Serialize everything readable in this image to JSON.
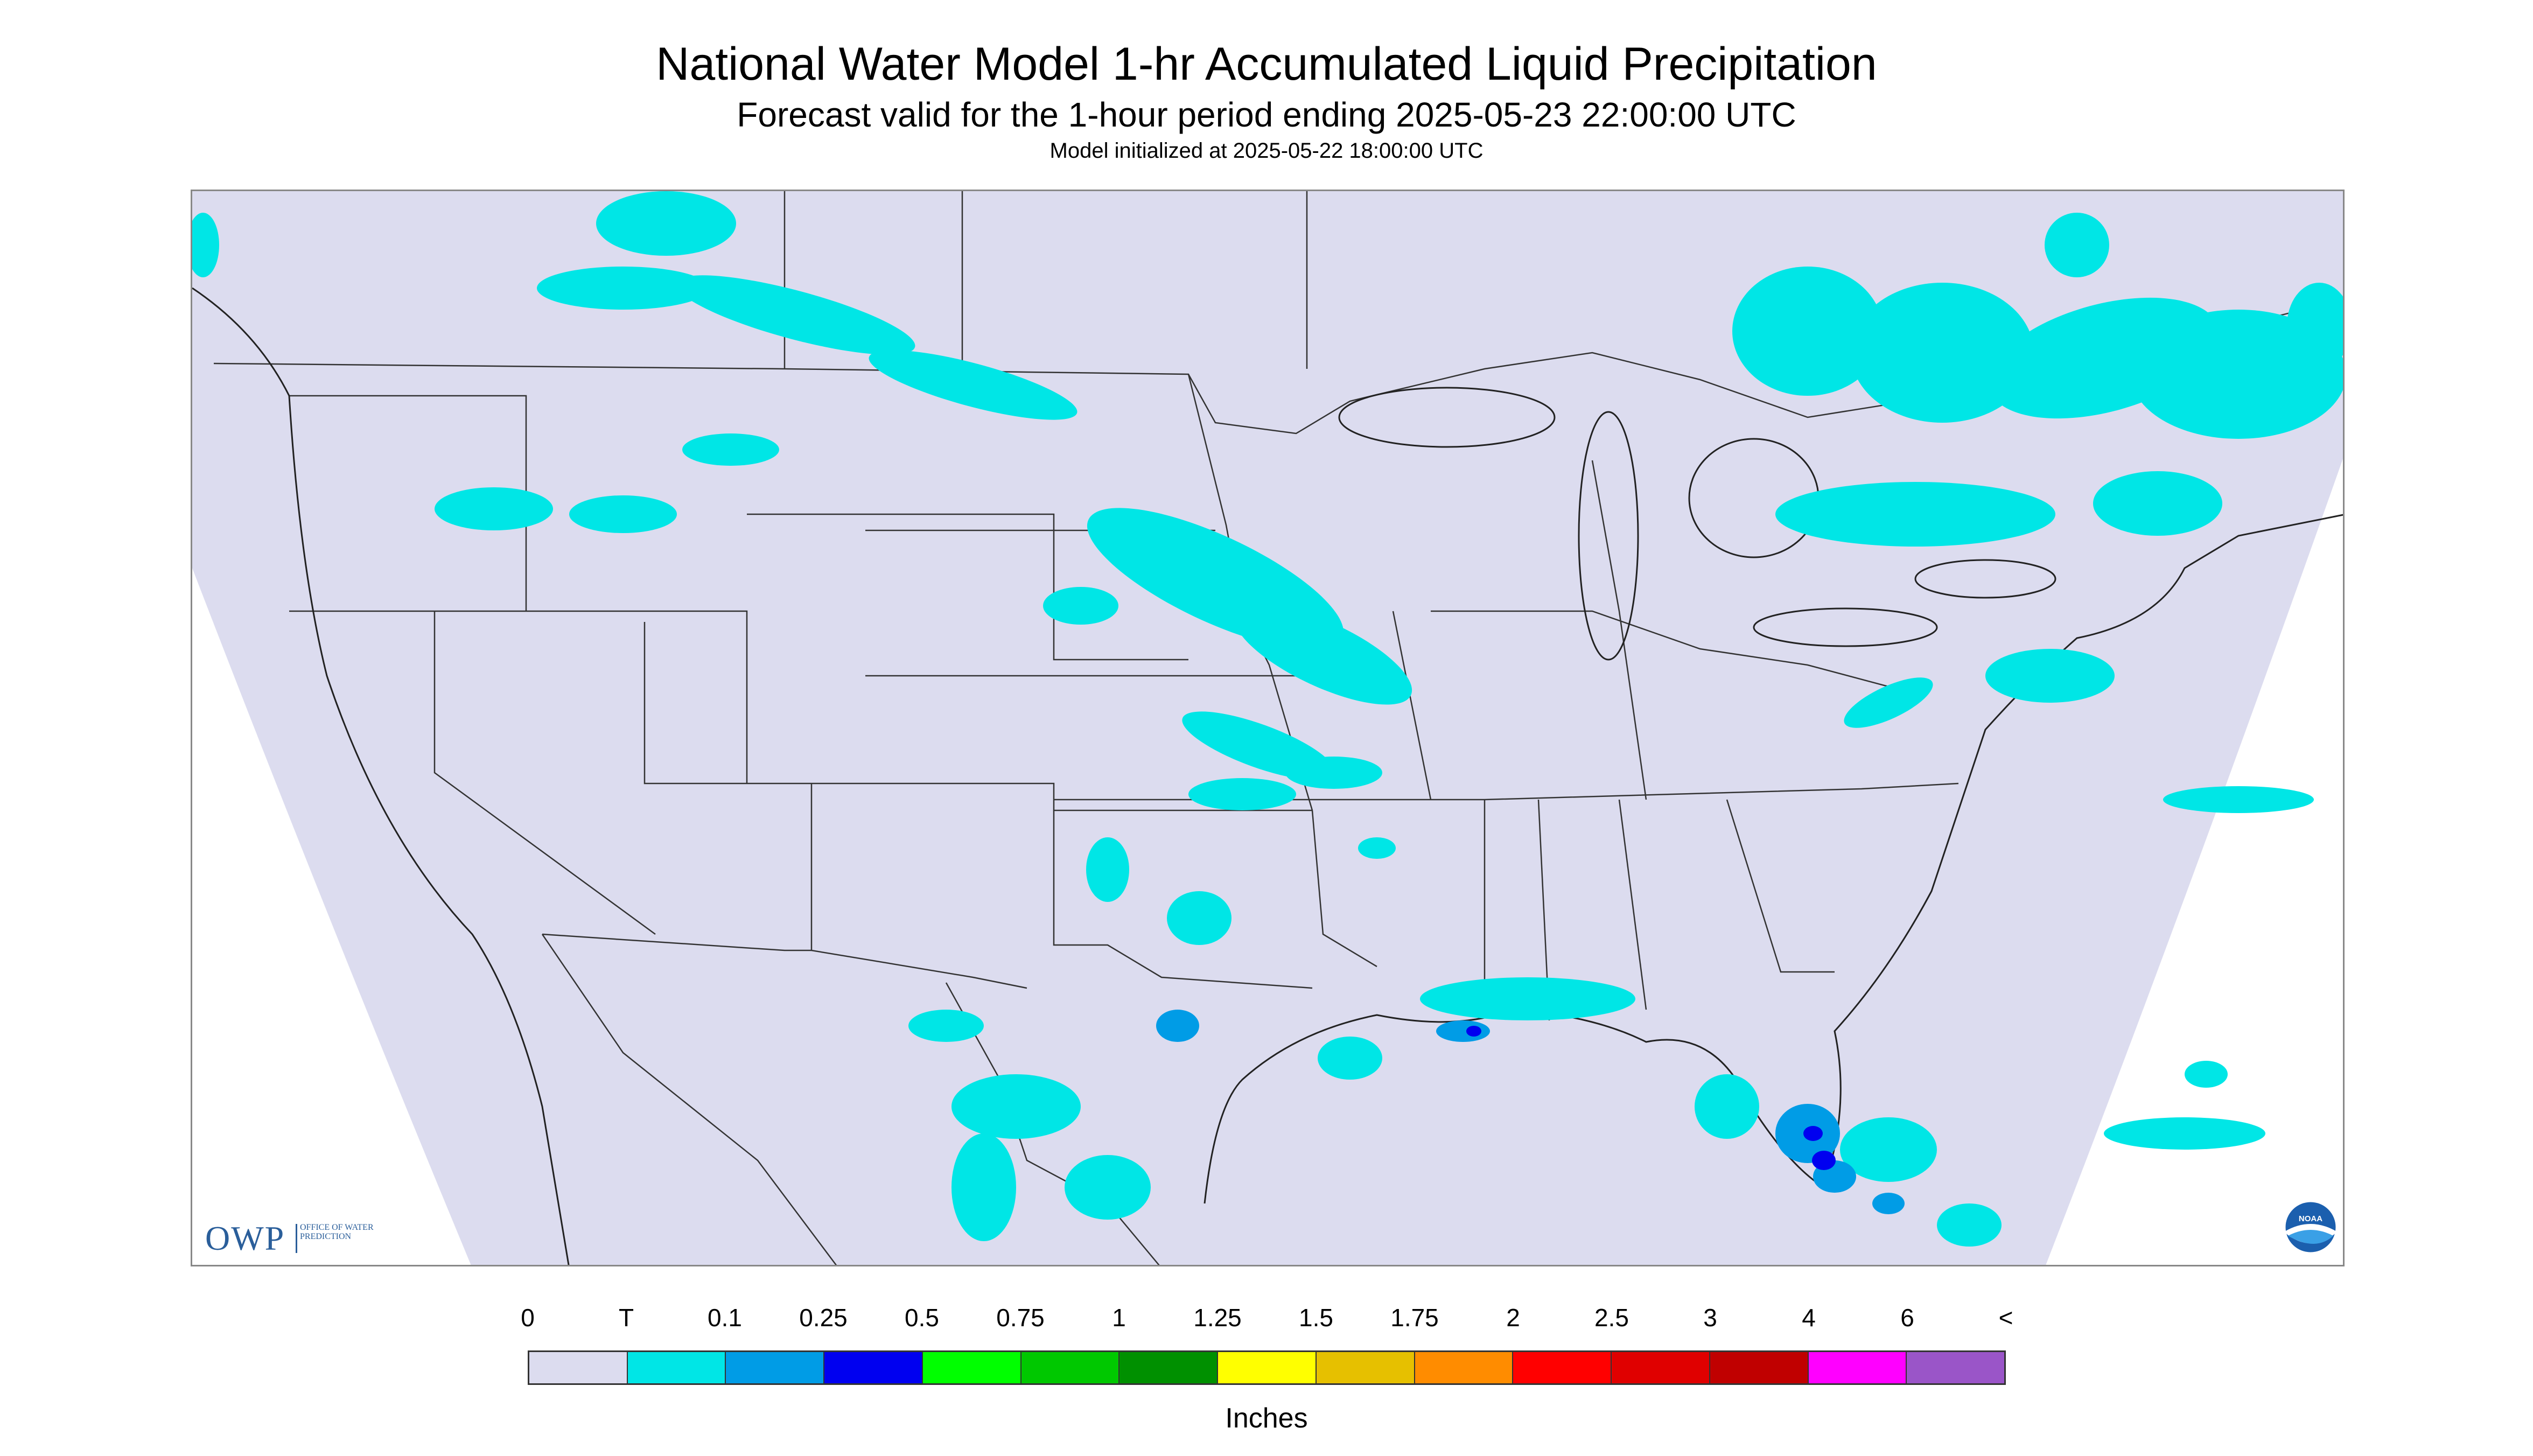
{
  "title": "National Water Model 1-hr Accumulated Liquid Precipitation",
  "subtitle": "Forecast valid for the 1-hour period ending 2025-05-23 22:00:00 UTC",
  "init_line": "Model initialized at 2025-05-22 18:00:00 UTC",
  "logo_owp": {
    "mark": "OWP",
    "text": "OFFICE OF WATER PREDICTION"
  },
  "logo_noaa": {
    "text": "NOAA",
    "icon": "noaa-logo-icon"
  },
  "legend": {
    "units": "Inches",
    "tick_labels": [
      "0",
      "T",
      "0.1",
      "0.25",
      "0.5",
      "0.75",
      "1",
      "1.25",
      "1.5",
      "1.75",
      "2",
      "2.5",
      "3",
      "4",
      "6",
      "<"
    ],
    "colors": [
      "#dcdcef",
      "#00e6e6",
      "#009ce6",
      "#0000f0",
      "#00ff00",
      "#00c800",
      "#009000",
      "#ffff00",
      "#e6c000",
      "#ff8c00",
      "#ff0000",
      "#e00000",
      "#c00000",
      "#ff00ff",
      "#9a55c8"
    ]
  },
  "colors": {
    "no_precip": "#dcdcef",
    "trace": "#00e6e6",
    "light": "#009ce6",
    "moderate": "#0000f0",
    "borders": "#333333"
  }
}
